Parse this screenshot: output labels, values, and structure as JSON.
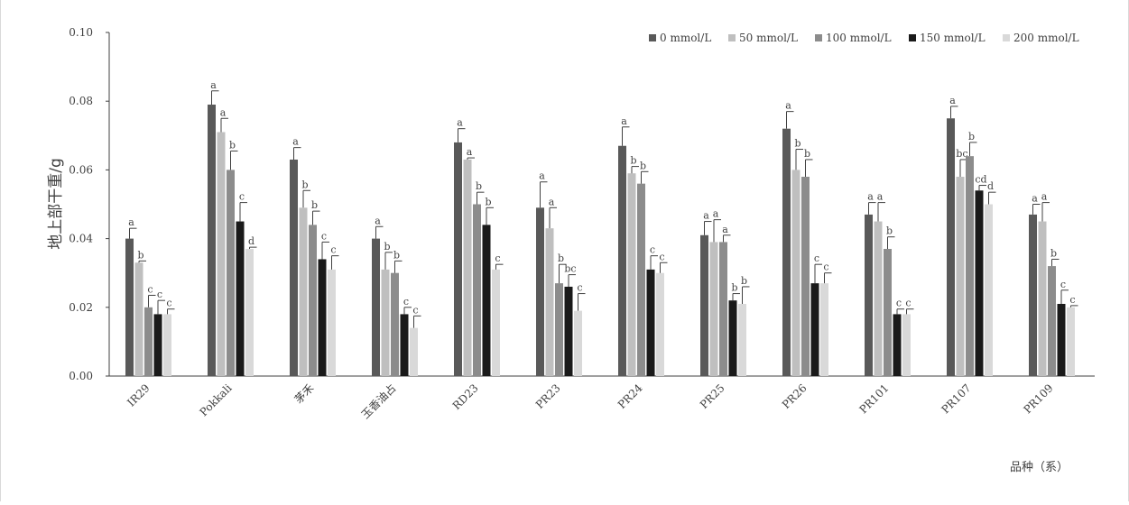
{
  "chart_data": {
    "type": "bar",
    "title": "",
    "xlabel": "品种（系）",
    "ylabel": "地上部干重/g",
    "ylim": [
      0,
      0.1
    ],
    "yticks": [
      "0.00",
      "0.02",
      "0.04",
      "0.06",
      "0.08",
      "0.10"
    ],
    "legend_position": "top-right",
    "grid": false,
    "categories": [
      "IR29",
      "Pokkali",
      "茅禾",
      "玉香油占",
      "RD23",
      "PR23",
      "PR24",
      "PR25",
      "PR26",
      "PR101",
      "PR107",
      "PR109"
    ],
    "series": [
      {
        "name": "0 mmol/L",
        "color": "#595959",
        "values": [
          0.04,
          0.079,
          0.063,
          0.04,
          0.068,
          0.049,
          0.067,
          0.041,
          0.072,
          0.047,
          0.075,
          0.047
        ],
        "errors": [
          0.003,
          0.004,
          0.0035,
          0.0035,
          0.004,
          0.0075,
          0.0055,
          0.004,
          0.005,
          0.0035,
          0.0035,
          0.003
        ],
        "letters": [
          "a",
          "a",
          "a",
          "a",
          "a",
          "a",
          "a",
          "a",
          "a",
          "a",
          "a",
          "a"
        ]
      },
      {
        "name": "50 mmol/L",
        "color": "#bfbfbf",
        "values": [
          0.033,
          0.071,
          0.049,
          0.031,
          0.063,
          0.043,
          0.059,
          0.039,
          0.06,
          0.045,
          0.058,
          0.045
        ],
        "errors": [
          0.0005,
          0.004,
          0.005,
          0.005,
          0.0005,
          0.006,
          0.002,
          0.0065,
          0.006,
          0.0055,
          0.005,
          0.0055
        ],
        "letters": [
          "b",
          "a",
          "b",
          "b",
          "a",
          "a",
          "b",
          "a",
          "b",
          "a",
          "bc",
          "a"
        ]
      },
      {
        "name": "100 mmol/L",
        "color": "#8c8c8c",
        "values": [
          0.02,
          0.06,
          0.044,
          0.03,
          0.05,
          0.027,
          0.056,
          0.039,
          0.058,
          0.037,
          0.064,
          0.032
        ],
        "errors": [
          0.0035,
          0.0055,
          0.004,
          0.0035,
          0.0035,
          0.0055,
          0.0035,
          0.002,
          0.005,
          0.0035,
          0.004,
          0.002
        ],
        "letters": [
          "c",
          "b",
          "b",
          "b",
          "b",
          "b",
          "b",
          "a",
          "b",
          "b",
          "b",
          "b"
        ]
      },
      {
        "name": "150 mmol/L",
        "color": "#1a1a1a",
        "values": [
          0.018,
          0.045,
          0.034,
          0.018,
          0.044,
          0.026,
          0.031,
          0.022,
          0.027,
          0.018,
          0.054,
          0.021
        ],
        "errors": [
          0.004,
          0.0055,
          0.005,
          0.002,
          0.005,
          0.0035,
          0.004,
          0.002,
          0.0055,
          0.0015,
          0.0015,
          0.004
        ],
        "letters": [
          "c",
          "c",
          "c",
          "c",
          "b",
          "bc",
          "c",
          "b",
          "c",
          "c",
          "cd",
          "c"
        ]
      },
      {
        "name": "200 mmol/L",
        "color": "#d9d9d9",
        "values": [
          0.018,
          0.037,
          0.031,
          0.014,
          0.031,
          0.019,
          0.03,
          0.021,
          0.027,
          0.018,
          0.05,
          0.02
        ],
        "errors": [
          0.0015,
          0.0005,
          0.004,
          0.0035,
          0.0015,
          0.005,
          0.003,
          0.005,
          0.003,
          0.0015,
          0.0035,
          0.0005
        ],
        "letters": [
          "c",
          "d",
          "c",
          "c",
          "c",
          "c",
          "c",
          "b",
          "c",
          "c",
          "d",
          "c"
        ]
      }
    ]
  }
}
